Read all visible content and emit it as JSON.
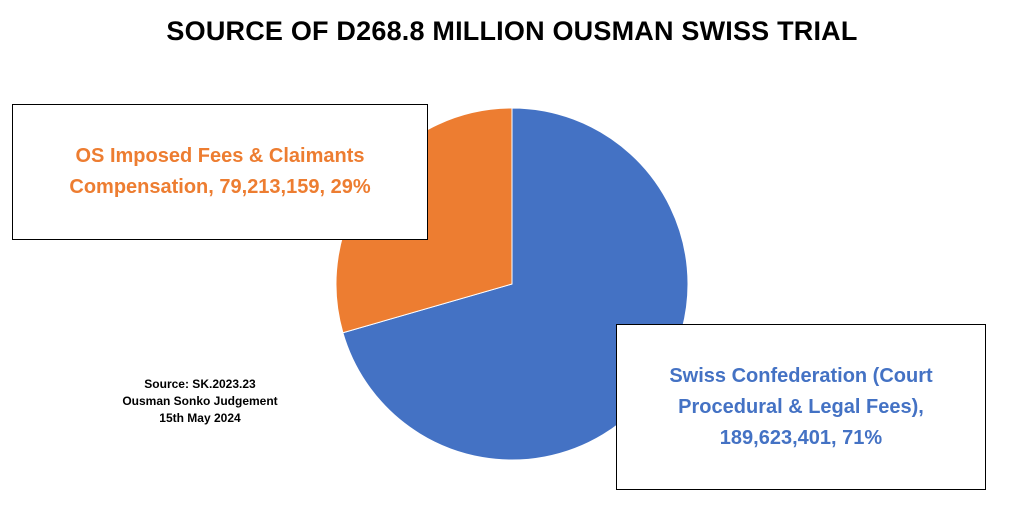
{
  "chart_data": {
    "type": "pie",
    "title": "SOURCE OF D268.8 MILLION OUSMAN SWISS TRIAL",
    "slices": [
      {
        "name": "Swiss Confederation (Court Procedural & Legal Fees)",
        "value": 189623401,
        "percent": 71,
        "color": "#4472C4",
        "label_lines": [
          "Swiss Confederation (Court",
          "Procedural & Legal Fees),",
          "189,623,401, 71%"
        ]
      },
      {
        "name": "OS Imposed Fees & Claimants Compensation",
        "value": 79213159,
        "percent": 29,
        "color": "#ED7D31",
        "label_lines": [
          "OS Imposed Fees & Claimants",
          "Compensation, 79,213,159, 29%"
        ]
      }
    ],
    "start": "12 o'clock",
    "direction": "clockwise",
    "legend": "none",
    "source_note": [
      "Source: SK.2023.23",
      "Ousman Sonko Judgement",
      "15th May 2024"
    ]
  }
}
